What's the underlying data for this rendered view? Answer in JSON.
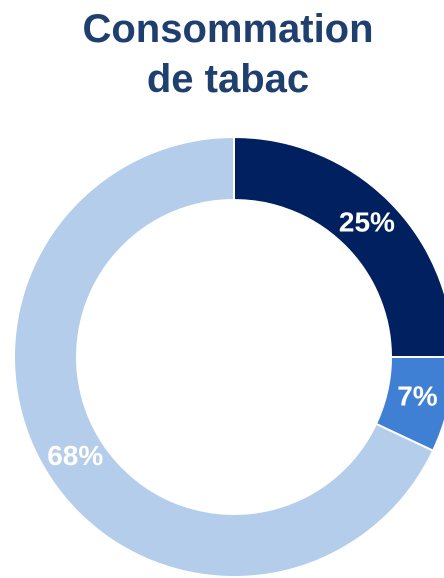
{
  "chart_data": {
    "type": "pie",
    "title": [
      "Consommation",
      "de tabac"
    ],
    "values": [
      25,
      7,
      68
    ],
    "value_labels": [
      "25%",
      "7%",
      "68%"
    ],
    "colors": [
      "#002060",
      "#3f7fd4",
      "#b4cdeb"
    ]
  }
}
